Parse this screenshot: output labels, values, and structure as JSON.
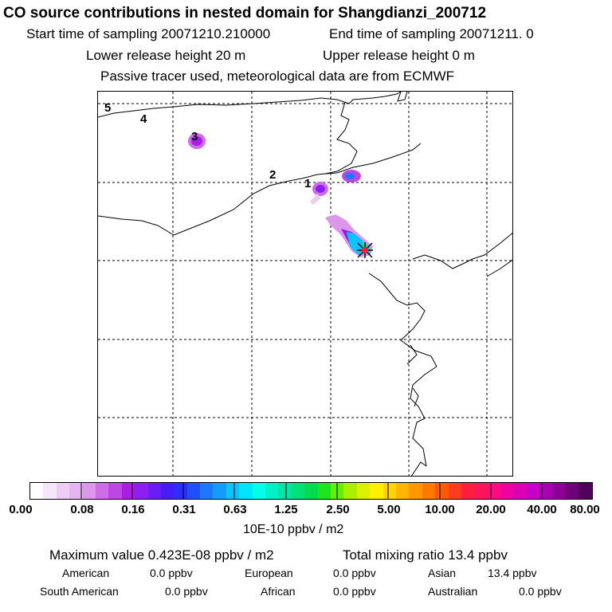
{
  "header": {
    "title": "CO  source contributions in nested domain for Shangdianzi_200712",
    "start_label": "Start time of sampling 20071210.210000",
    "end_label": "End time of sampling 20071211.     0",
    "lower_label": "Lower release height   20 m",
    "upper_label": "Upper release height    0 m",
    "tracer_note": "Passive tracer used, meteorological data are from ECMWF"
  },
  "map": {
    "trajectory_labels": [
      "1",
      "2",
      "3",
      "4",
      "5"
    ]
  },
  "colorbar": {
    "ticks": [
      "0.00",
      "0.08",
      "0.16",
      "0.31",
      "0.63",
      "1.25",
      "2.50",
      "5.00",
      "10.00",
      "20.00",
      "40.00",
      "80.00"
    ],
    "unit_label": "10E-10 ppbv / m2",
    "colors": [
      "#ffffff",
      "#f6e6fa",
      "#eecdf5",
      "#e6b4f0",
      "#dc96ec",
      "#cd6de8",
      "#be46e4",
      "#aa1ee4",
      "#8c1ef0",
      "#6a1ef5",
      "#461ef5",
      "#2d2dff",
      "#1e50ff",
      "#1e78ff",
      "#149bff",
      "#0ac3ff",
      "#00e6ff",
      "#00ffe6",
      "#00f0c8",
      "#00e6a0",
      "#00e178",
      "#00dc50",
      "#1ee61e",
      "#64f000",
      "#aaf000",
      "#dcf000",
      "#fff000",
      "#ffd200",
      "#ffb400",
      "#ff9600",
      "#ff7800",
      "#ff5a00",
      "#ff3c1e",
      "#ff1e3c",
      "#ff145a",
      "#ff0a82",
      "#f000a0",
      "#dc00b4",
      "#c800c8",
      "#aa00b4",
      "#8c0096",
      "#6e0078",
      "#50005a"
    ]
  },
  "summary": {
    "max_value": "Maximum value  0.423E-08 ppbv / m2",
    "total_mixing": "Total mixing ratio       13.4 ppbv",
    "american_label": "American",
    "american_value": "0.0 ppbv",
    "european_label": "European",
    "european_value": "0.0 ppbv",
    "asian_label": "Asian",
    "asian_value": "13.4 ppbv",
    "south_american_label": "South American",
    "south_american_value": "0.0 ppbv",
    "african_label": "African",
    "african_value": "0.0 ppbv",
    "australian_label": "Australian",
    "australian_value": "0.0 ppbv"
  },
  "chart_data": {
    "type": "heatmap",
    "title": "CO  source contributions in nested domain for Shangdianzi_200712",
    "colorbar_ticks": [
      0.0,
      0.08,
      0.16,
      0.31,
      0.63,
      1.25,
      2.5,
      5.0,
      10.0,
      20.0,
      40.0,
      80.0
    ],
    "colorbar_unit": "10E-10 ppbv / m2",
    "max_value_ppbv_per_m2": 4.23e-09,
    "total_mixing_ratio_ppbv": 13.4,
    "contributions_ppbv": {
      "American": 0.0,
      "European": 0.0,
      "Asian": 13.4,
      "South American": 0.0,
      "African": 0.0,
      "Australian": 0.0
    },
    "trajectory_points": [
      "1",
      "2",
      "3",
      "4",
      "5"
    ]
  }
}
